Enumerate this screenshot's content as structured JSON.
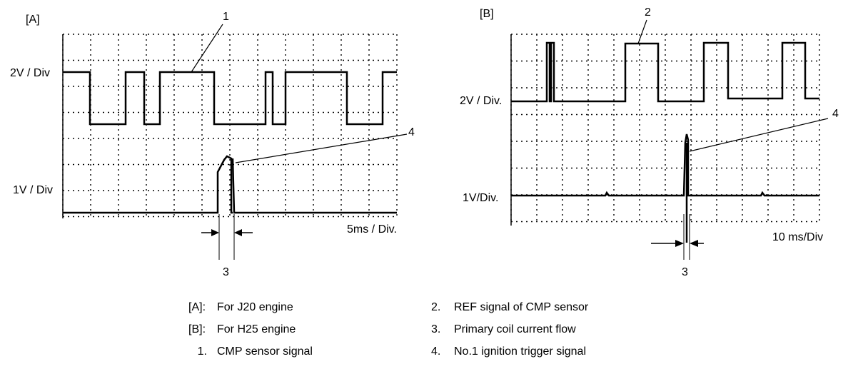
{
  "panel_a": {
    "tag": "[A]",
    "upper_scale": "2V / Div",
    "lower_scale": "1V / Div",
    "time_scale": "5ms / Div.",
    "callout_1": "1",
    "callout_3": "3",
    "callout_4": "4"
  },
  "panel_b": {
    "tag": "[B]",
    "upper_scale": "2V / Div.",
    "lower_scale": "1V/Div.",
    "time_scale": "10 ms/Div",
    "callout_2": "2",
    "callout_3": "3",
    "callout_4": "4"
  },
  "legend": {
    "left": [
      {
        "key": "[A]:",
        "desc": "For J20 engine"
      },
      {
        "key": "[B]:",
        "desc": "For H25 engine"
      },
      {
        "key": "1.",
        "desc": "CMP sensor signal"
      }
    ],
    "right": [
      {
        "key": "2.",
        "desc": "REF signal of CMP sensor"
      },
      {
        "key": "3.",
        "desc": "Primary coil current flow"
      },
      {
        "key": "4.",
        "desc": "No.1 ignition trigger signal"
      }
    ]
  }
}
